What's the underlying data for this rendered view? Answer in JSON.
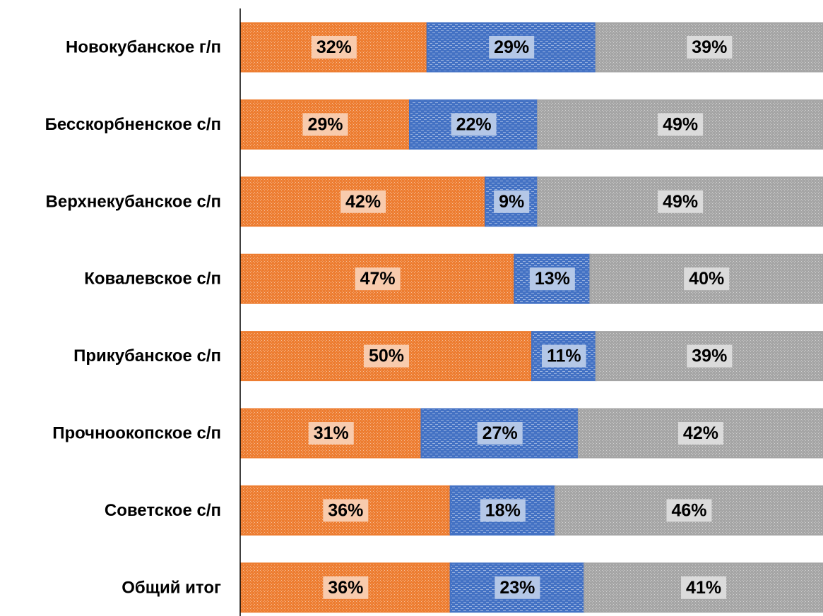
{
  "chart_data": {
    "type": "bar",
    "orientation": "horizontal",
    "stacked": "percent",
    "categories": [
      "Новокубанское г/п",
      "Бесскорбненское с/п",
      "Верхнекубанское с/п",
      "Ковалевское с/п",
      "Прикубанское с/п",
      "Прочноокопское с/п",
      "Советское с/п",
      "Общий итог"
    ],
    "series": [
      {
        "values": [
          32,
          29,
          42,
          47,
          50,
          31,
          36,
          36
        ],
        "labels": [
          "32%",
          "29%",
          "42%",
          "47%",
          "50%",
          "31%",
          "36%",
          "36%"
        ],
        "color": "#ED7D31",
        "label_bg": "#F8CBAD",
        "pattern": "dots"
      },
      {
        "values": [
          29,
          22,
          9,
          13,
          11,
          27,
          18,
          23
        ],
        "labels": [
          "29%",
          "22%",
          "9%",
          "13%",
          "11%",
          "27%",
          "18%",
          "23%"
        ],
        "color": "#4472C4",
        "label_bg": "#B4C7E7",
        "pattern": "dashes"
      },
      {
        "values": [
          39,
          49,
          49,
          40,
          39,
          42,
          46,
          41
        ],
        "labels": [
          "39%",
          "49%",
          "49%",
          "40%",
          "39%",
          "42%",
          "46%",
          "41%"
        ],
        "color": "#A5A5A5",
        "label_bg": "#DBDBDB",
        "pattern": "dots"
      }
    ],
    "xlim": [
      0,
      100
    ],
    "grid": false,
    "legend": "none",
    "title": "",
    "xlabel": "",
    "ylabel": ""
  }
}
